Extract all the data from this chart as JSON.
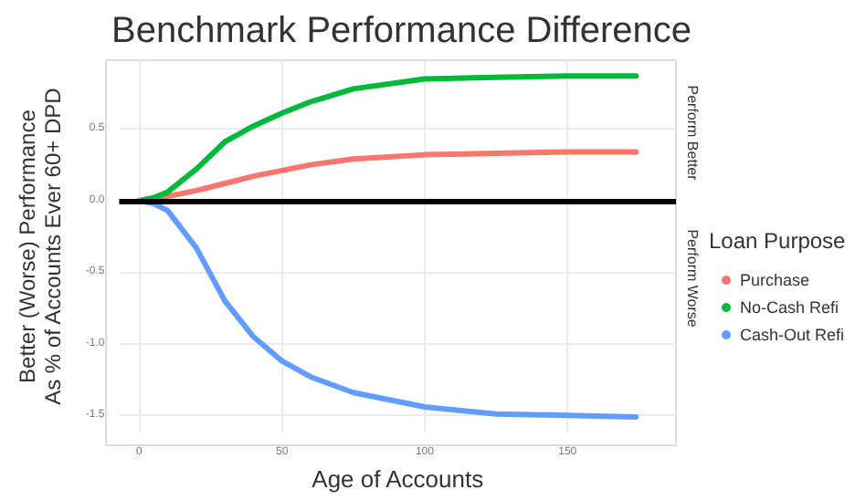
{
  "chart_data": {
    "type": "line",
    "title": "Benchmark Performance Difference",
    "xlabel": "Age of Accounts",
    "ylabel": "Better (Worse) Performance\nAs % of Accounts Ever 60+ DPD",
    "legend_title": "Loan Purpose",
    "legend": "right",
    "grid": true,
    "marker": "none",
    "xlim": [
      -7,
      188
    ],
    "xticks": [
      0,
      50,
      100,
      150
    ],
    "ylim": [
      -1.62,
      0.98
    ],
    "yticks": [
      {
        "value": -1.5,
        "label": "-1.5"
      },
      {
        "value": -1,
        "label": "-1.0"
      },
      {
        "value": -0.5,
        "label": "-0.5"
      },
      {
        "value": 0,
        "label": "0.0"
      },
      {
        "value": 0.5,
        "label": "0.5"
      }
    ],
    "x": [
      0,
      5,
      10,
      20,
      30,
      40,
      50,
      60,
      75,
      100,
      125,
      150,
      174
    ],
    "series": [
      {
        "name": "Purchase",
        "color": "#f8766d",
        "values": [
          0,
          0.01,
          0.03,
          0.07,
          0.12,
          0.17,
          0.21,
          0.25,
          0.29,
          0.32,
          0.33,
          0.34,
          0.34
        ]
      },
      {
        "name": "No-Cash Refi",
        "color": "#00ba38",
        "values": [
          0,
          0.02,
          0.06,
          0.22,
          0.41,
          0.52,
          0.61,
          0.69,
          0.78,
          0.85,
          0.86,
          0.87,
          0.87
        ]
      },
      {
        "name": "Cash-Out Refi",
        "color": "#619cff",
        "values": [
          0,
          -0.02,
          -0.07,
          -0.33,
          -0.7,
          -0.95,
          -1.12,
          -1.23,
          -1.34,
          -1.44,
          -1.49,
          -1.5,
          -1.51
        ]
      }
    ],
    "ref_lines": [
      {
        "axis": "y",
        "value": 0,
        "color": "#000000"
      }
    ],
    "annotations": [
      "Perform Better",
      "Perform Worse"
    ]
  }
}
